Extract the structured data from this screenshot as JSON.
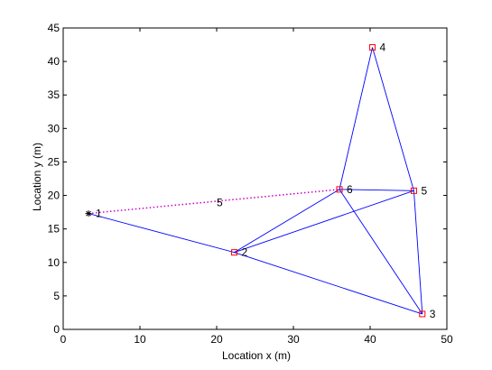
{
  "chart_data": {
    "type": "scatter",
    "xlabel": "Location x (m)",
    "ylabel": "Location y (m)",
    "xlim": [
      0,
      50
    ],
    "ylim": [
      0,
      45
    ],
    "x_ticks": [
      0,
      10,
      20,
      30,
      40,
      50
    ],
    "y_ticks": [
      0,
      5,
      10,
      15,
      20,
      25,
      30,
      35,
      40,
      45
    ],
    "grid": false,
    "colors": {
      "edges": "#0000ff",
      "dotted": "#cc00cc",
      "markers": "#ff0000",
      "source": "#000000"
    },
    "nodes": [
      {
        "id": "1",
        "x": 3.3,
        "y": 17.3,
        "marker": "asterisk"
      },
      {
        "id": "2",
        "x": 22.3,
        "y": 11.5,
        "marker": "square"
      },
      {
        "id": "3",
        "x": 46.8,
        "y": 2.3,
        "marker": "square"
      },
      {
        "id": "4",
        "x": 40.3,
        "y": 42.1,
        "marker": "square"
      },
      {
        "id": "5",
        "x": 45.7,
        "y": 20.7,
        "marker": "square"
      },
      {
        "id": "6",
        "x": 36.0,
        "y": 20.9,
        "marker": "square"
      }
    ],
    "edges": [
      [
        "1",
        "2"
      ],
      [
        "2",
        "3"
      ],
      [
        "2",
        "5"
      ],
      [
        "2",
        "6"
      ],
      [
        "6",
        "4"
      ],
      [
        "6",
        "5"
      ],
      [
        "6",
        "3"
      ],
      [
        "4",
        "5"
      ],
      [
        "5",
        "3"
      ]
    ],
    "dotted_edge": {
      "from": "1",
      "to": "6",
      "label": "5",
      "label_x": 20.0,
      "label_y": 18.9
    }
  }
}
